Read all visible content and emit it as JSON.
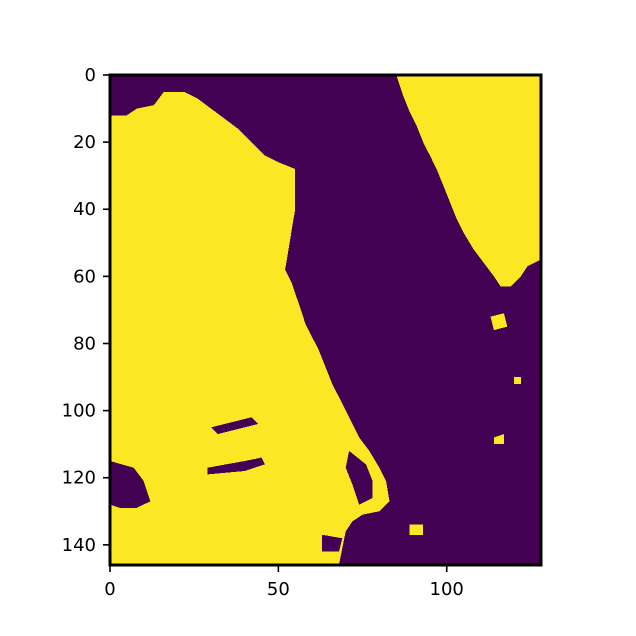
{
  "colors": {
    "background_class": "#440154",
    "foreground_class": "#fde725",
    "axes": "#000000",
    "page": "#ffffff"
  },
  "chart_data": {
    "type": "heatmap",
    "colormap": "viridis",
    "value_levels": [
      0,
      1
    ],
    "xlim": [
      0,
      128
    ],
    "ylim": [
      146,
      0
    ],
    "y_inverted": true,
    "grid": false,
    "legend": "none",
    "title": "",
    "xlabel": "",
    "ylabel": "",
    "x_ticks": [
      {
        "value": 0,
        "label": "0"
      },
      {
        "value": 50,
        "label": "50"
      },
      {
        "value": 100,
        "label": "100"
      }
    ],
    "y_ticks": [
      {
        "value": 0,
        "label": "0"
      },
      {
        "value": 20,
        "label": "20"
      },
      {
        "value": 40,
        "label": "40"
      },
      {
        "value": 60,
        "label": "60"
      },
      {
        "value": 80,
        "label": "80"
      },
      {
        "value": 100,
        "label": "100"
      },
      {
        "value": 120,
        "label": "120"
      },
      {
        "value": 140,
        "label": "140"
      }
    ],
    "regions_value_1": [
      {
        "name": "left-landmass",
        "polygon": [
          [
            0,
            12
          ],
          [
            5,
            12
          ],
          [
            8,
            10
          ],
          [
            13,
            9
          ],
          [
            16,
            5
          ],
          [
            18,
            5
          ],
          [
            22,
            5
          ],
          [
            26,
            7
          ],
          [
            30,
            10
          ],
          [
            34,
            13
          ],
          [
            38,
            16
          ],
          [
            42,
            20
          ],
          [
            46,
            24
          ],
          [
            50,
            26
          ],
          [
            55,
            28
          ],
          [
            55,
            40
          ],
          [
            54,
            46
          ],
          [
            53,
            52
          ],
          [
            52,
            58
          ],
          [
            54,
            62
          ],
          [
            56,
            68
          ],
          [
            58,
            74
          ],
          [
            60,
            78
          ],
          [
            62,
            82
          ],
          [
            64,
            87
          ],
          [
            66,
            92
          ],
          [
            68,
            96
          ],
          [
            70,
            100
          ],
          [
            72,
            104
          ],
          [
            74,
            108
          ],
          [
            77,
            112
          ],
          [
            80,
            117
          ],
          [
            82,
            121
          ],
          [
            83,
            127
          ],
          [
            80,
            130
          ],
          [
            75,
            131
          ],
          [
            72,
            133
          ],
          [
            70,
            136
          ],
          [
            69,
            141
          ],
          [
            68,
            146
          ],
          [
            0,
            146
          ]
        ]
      },
      {
        "name": "right-landmass",
        "polygon": [
          [
            85,
            0
          ],
          [
            128,
            0
          ],
          [
            128,
            55
          ],
          [
            124,
            57
          ],
          [
            122,
            60
          ],
          [
            119,
            63
          ],
          [
            116,
            63
          ],
          [
            114,
            60
          ],
          [
            111,
            56
          ],
          [
            108,
            52
          ],
          [
            105,
            47
          ],
          [
            103,
            43
          ],
          [
            101,
            38
          ],
          [
            99,
            33
          ],
          [
            97,
            28
          ],
          [
            95,
            24
          ],
          [
            93,
            20
          ],
          [
            91,
            15
          ],
          [
            89,
            11
          ],
          [
            87,
            6
          ],
          [
            86,
            3
          ]
        ]
      },
      {
        "name": "bottom-island",
        "polygon": [
          [
            89,
            134
          ],
          [
            93,
            134
          ],
          [
            93,
            137
          ],
          [
            89,
            137
          ]
        ]
      },
      {
        "name": "right-islet-a",
        "polygon": [
          [
            113,
            72
          ],
          [
            117,
            71
          ],
          [
            118,
            75
          ],
          [
            114,
            76
          ]
        ]
      },
      {
        "name": "right-islet-b",
        "polygon": [
          [
            114,
            108
          ],
          [
            117,
            107
          ],
          [
            117,
            110
          ],
          [
            114,
            110
          ]
        ]
      },
      {
        "name": "right-islet-c",
        "polygon": [
          [
            120,
            90
          ],
          [
            122,
            90
          ],
          [
            122,
            92
          ],
          [
            120,
            92
          ]
        ]
      }
    ],
    "regions_value_0_within_1": [
      {
        "name": "channel-a",
        "polygon": [
          [
            29,
            117
          ],
          [
            40,
            115
          ],
          [
            45,
            114
          ],
          [
            46,
            116
          ],
          [
            40,
            118
          ],
          [
            29,
            119
          ]
        ]
      },
      {
        "name": "channel-b",
        "polygon": [
          [
            30,
            105
          ],
          [
            42,
            102
          ],
          [
            44,
            104
          ],
          [
            32,
            107
          ]
        ]
      },
      {
        "name": "left-notch",
        "polygon": [
          [
            0,
            115
          ],
          [
            7,
            117
          ],
          [
            10,
            121
          ],
          [
            12,
            127
          ],
          [
            8,
            129
          ],
          [
            3,
            129
          ],
          [
            0,
            128
          ]
        ]
      },
      {
        "name": "cove",
        "polygon": [
          [
            71,
            112
          ],
          [
            76,
            116
          ],
          [
            78,
            121
          ],
          [
            78,
            126
          ],
          [
            74,
            128
          ],
          [
            72,
            122
          ],
          [
            70,
            117
          ]
        ]
      },
      {
        "name": "bay",
        "polygon": [
          [
            63,
            137
          ],
          [
            69,
            138
          ],
          [
            68,
            142
          ],
          [
            63,
            142
          ]
        ]
      }
    ]
  }
}
